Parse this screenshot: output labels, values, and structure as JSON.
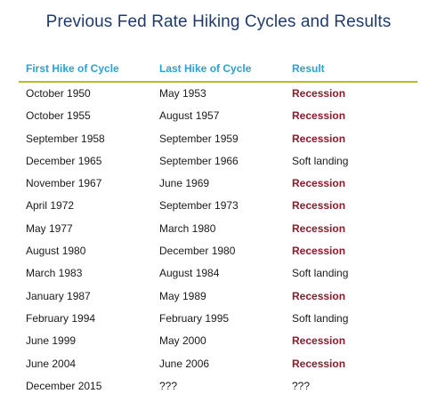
{
  "title": "Previous Fed Rate Hiking Cycles and Results",
  "colors": {
    "title": "#1f3b6e",
    "header": "#2aa1d3",
    "rule": "#b7ba34",
    "recession": "#8b1a2b",
    "text": "#1a1a1a"
  },
  "headers": {
    "first_hike": "First Hike of Cycle",
    "last_hike": "Last Hike of Cycle",
    "result": "Result"
  },
  "rows": [
    {
      "first": "October 1950",
      "last": "May 1953",
      "result": "Recession"
    },
    {
      "first": "October 1955",
      "last": "August 1957",
      "result": "Recession"
    },
    {
      "first": "September 1958",
      "last": "September 1959",
      "result": "Recession"
    },
    {
      "first": "December 1965",
      "last": "September 1966",
      "result": "Soft landing"
    },
    {
      "first": "November 1967",
      "last": "June 1969",
      "result": "Recession"
    },
    {
      "first": "April 1972",
      "last": "September 1973",
      "result": "Recession"
    },
    {
      "first": "May 1977",
      "last": "March 1980",
      "result": "Recession"
    },
    {
      "first": "August 1980",
      "last": "December 1980",
      "result": "Recession"
    },
    {
      "first": "March 1983",
      "last": "August 1984",
      "result": "Soft landing"
    },
    {
      "first": "January 1987",
      "last": "May 1989",
      "result": "Recession"
    },
    {
      "first": "February 1994",
      "last": "February 1995",
      "result": "Soft landing"
    },
    {
      "first": "June 1999",
      "last": "May 2000",
      "result": "Recession"
    },
    {
      "first": "June 2004",
      "last": "June 2006",
      "result": "Recession"
    },
    {
      "first": "December 2015",
      "last": "???",
      "result": "???"
    }
  ]
}
